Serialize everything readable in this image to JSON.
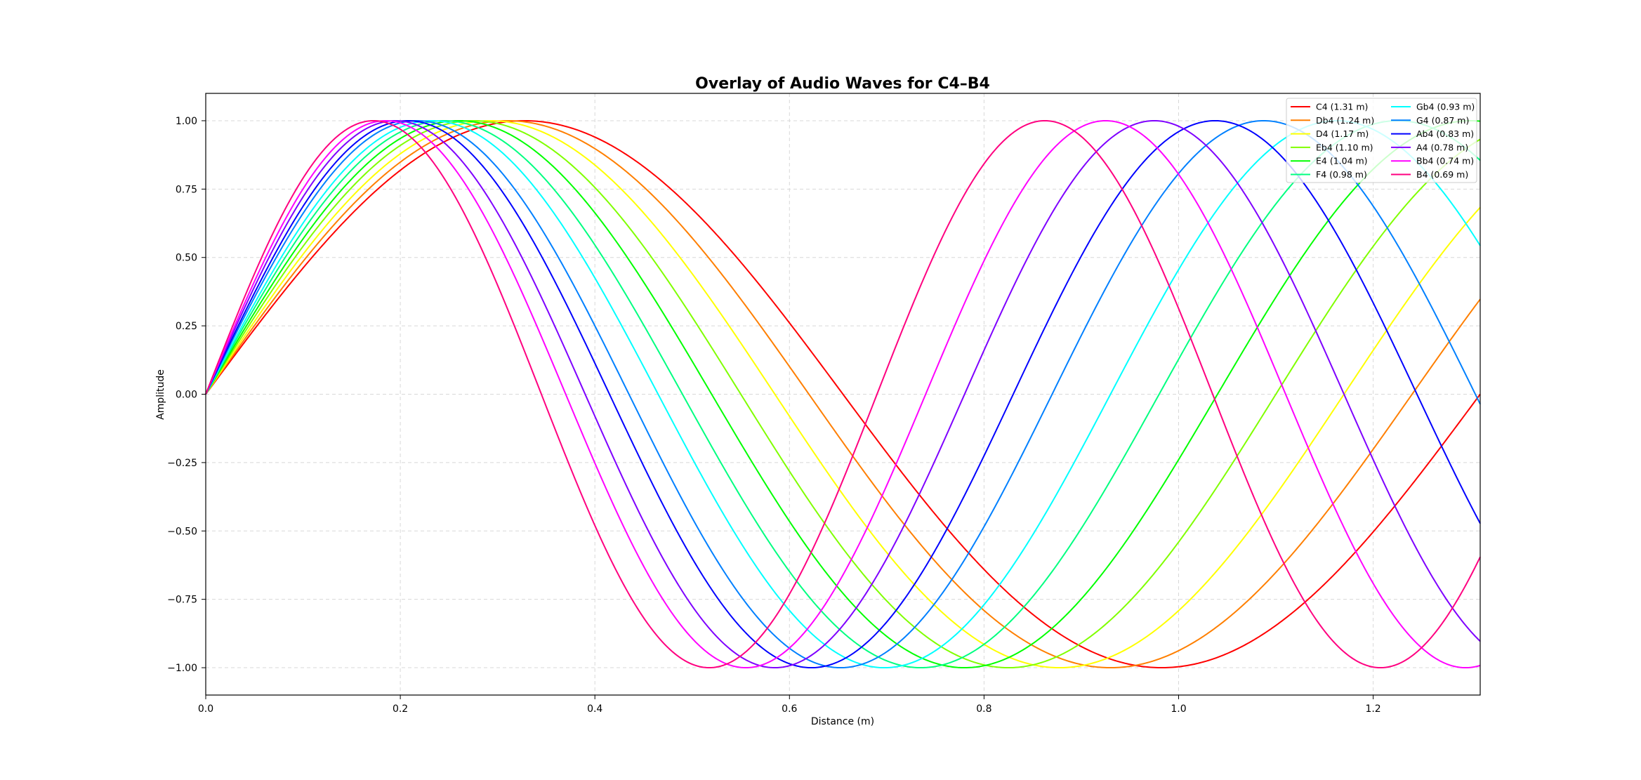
{
  "chart_data": {
    "type": "line",
    "title": "Overlay of Audio Waves for C4–B4",
    "xlabel": "Distance (m)",
    "ylabel": "Amplitude",
    "xlim": [
      0,
      1.31
    ],
    "ylim": [
      -1.1,
      1.1
    ],
    "grid": true,
    "legend_position": "top-right",
    "legend_columns": 2,
    "x_ticks": [
      0.0,
      0.2,
      0.4,
      0.6,
      0.8,
      1.0,
      1.2
    ],
    "x_tick_labels": [
      "0.0",
      "0.2",
      "0.4",
      "0.6",
      "0.8",
      "1.0",
      "1.2"
    ],
    "y_ticks": [
      1.0,
      0.75,
      0.5,
      0.25,
      0.0,
      -0.25,
      -0.5,
      -0.75,
      -1.0
    ],
    "y_tick_labels": [
      "1.00",
      "0.75",
      "0.50",
      "0.25",
      "0.00",
      "−0.25",
      "−0.50",
      "−0.75",
      "−1.00"
    ],
    "series": [
      {
        "name": "C4 (1.31 m)",
        "wavelength": 1.31,
        "amplitude": 1.0,
        "color": "#ff0000"
      },
      {
        "name": "Db4 (1.24 m)",
        "wavelength": 1.24,
        "amplitude": 1.0,
        "color": "#ff7f00"
      },
      {
        "name": "D4 (1.17 m)",
        "wavelength": 1.17,
        "amplitude": 1.0,
        "color": "#ffff00"
      },
      {
        "name": "Eb4 (1.10 m)",
        "wavelength": 1.1,
        "amplitude": 1.0,
        "color": "#80ff00"
      },
      {
        "name": "E4 (1.04 m)",
        "wavelength": 1.04,
        "amplitude": 1.0,
        "color": "#00ff00"
      },
      {
        "name": "F4 (0.98 m)",
        "wavelength": 0.98,
        "amplitude": 1.0,
        "color": "#00ff80"
      },
      {
        "name": "Gb4 (0.93 m)",
        "wavelength": 0.93,
        "amplitude": 1.0,
        "color": "#00ffff"
      },
      {
        "name": "G4 (0.87 m)",
        "wavelength": 0.87,
        "amplitude": 1.0,
        "color": "#0080ff"
      },
      {
        "name": "Ab4 (0.83 m)",
        "wavelength": 0.83,
        "amplitude": 1.0,
        "color": "#0000ff"
      },
      {
        "name": "A4 (0.78 m)",
        "wavelength": 0.78,
        "amplitude": 1.0,
        "color": "#7f00ff"
      },
      {
        "name": "Bb4 (0.74 m)",
        "wavelength": 0.74,
        "amplitude": 1.0,
        "color": "#ff00ff"
      },
      {
        "name": "B4 (0.69 m)",
        "wavelength": 0.69,
        "amplitude": 1.0,
        "color": "#ff0080"
      }
    ]
  }
}
